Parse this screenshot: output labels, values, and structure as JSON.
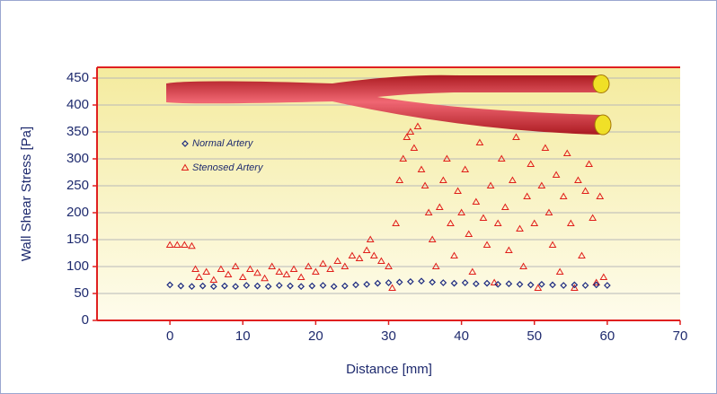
{
  "chart_data": {
    "type": "scatter",
    "x_label": "Distance [mm]",
    "y_label": "Wall Shear Stress [Pa]",
    "xlim": [
      -10,
      70
    ],
    "xticks": [
      0,
      10,
      20,
      30,
      40,
      50,
      60,
      70
    ],
    "ylim": [
      0,
      470
    ],
    "yticks": [
      0,
      50,
      100,
      150,
      200,
      250,
      300,
      350,
      400,
      450
    ],
    "grid": true,
    "series": [
      {
        "name": "Normal Artery",
        "color": "#1c2a80",
        "marker": "diamond",
        "x": [
          0,
          1.5,
          3,
          4.5,
          6,
          7.5,
          9,
          10.5,
          12,
          13.5,
          15,
          16.5,
          18,
          19.5,
          21,
          22.5,
          24,
          25.5,
          27,
          28.5,
          30,
          31.5,
          33,
          34.5,
          36,
          37.5,
          39,
          40.5,
          42,
          43.5,
          45,
          46.5,
          48,
          49.5,
          51,
          52.5,
          54,
          55.5,
          57,
          58.5,
          60
        ],
        "values": [
          66,
          64,
          63,
          64,
          63,
          64,
          63,
          65,
          64,
          63,
          65,
          64,
          63,
          64,
          65,
          63,
          64,
          66,
          67,
          69,
          70,
          71,
          72,
          73,
          71,
          70,
          69,
          70,
          68,
          69,
          67,
          68,
          67,
          66,
          67,
          66,
          65,
          66,
          65,
          66,
          65
        ]
      },
      {
        "name": "Stenosed Artery",
        "color": "#e01e1a",
        "marker": "triangle",
        "x": [
          0,
          1,
          2,
          3,
          3.5,
          4,
          5,
          6,
          7,
          8,
          9,
          10,
          11,
          12,
          13,
          14,
          15,
          16,
          17,
          18,
          19,
          20,
          21,
          22,
          23,
          24,
          25,
          26,
          27,
          27.5,
          28,
          29,
          30,
          30.5,
          31,
          31.5,
          32,
          32.5,
          33,
          33.5,
          34,
          34.5,
          35,
          35.5,
          36,
          36.5,
          37,
          37.5,
          38,
          38.5,
          39,
          39.5,
          40,
          40.5,
          41,
          41.5,
          42,
          42.5,
          43,
          43.5,
          44,
          44.5,
          45,
          45.5,
          46,
          46.5,
          47,
          47.5,
          48,
          48.5,
          49,
          49.5,
          50,
          50.5,
          51,
          51.5,
          52,
          52.5,
          53,
          53.5,
          54,
          54.5,
          55,
          55.5,
          56,
          56.5,
          57,
          57.5,
          58,
          58.5,
          59,
          59.5
        ],
        "values": [
          140,
          140,
          140,
          138,
          95,
          80,
          90,
          75,
          95,
          85,
          100,
          80,
          95,
          88,
          78,
          100,
          90,
          85,
          95,
          80,
          100,
          90,
          105,
          95,
          110,
          100,
          120,
          115,
          130,
          150,
          120,
          110,
          100,
          60,
          180,
          260,
          300,
          340,
          350,
          320,
          360,
          280,
          250,
          200,
          150,
          100,
          210,
          260,
          300,
          180,
          120,
          240,
          200,
          280,
          160,
          90,
          220,
          330,
          190,
          140,
          250,
          70,
          180,
          300,
          210,
          130,
          260,
          340,
          170,
          100,
          230,
          290,
          180,
          60,
          250,
          320,
          200,
          140,
          270,
          90,
          230,
          310,
          180,
          60,
          260,
          120,
          240,
          290,
          190,
          70,
          230,
          80
        ]
      }
    ]
  }
}
